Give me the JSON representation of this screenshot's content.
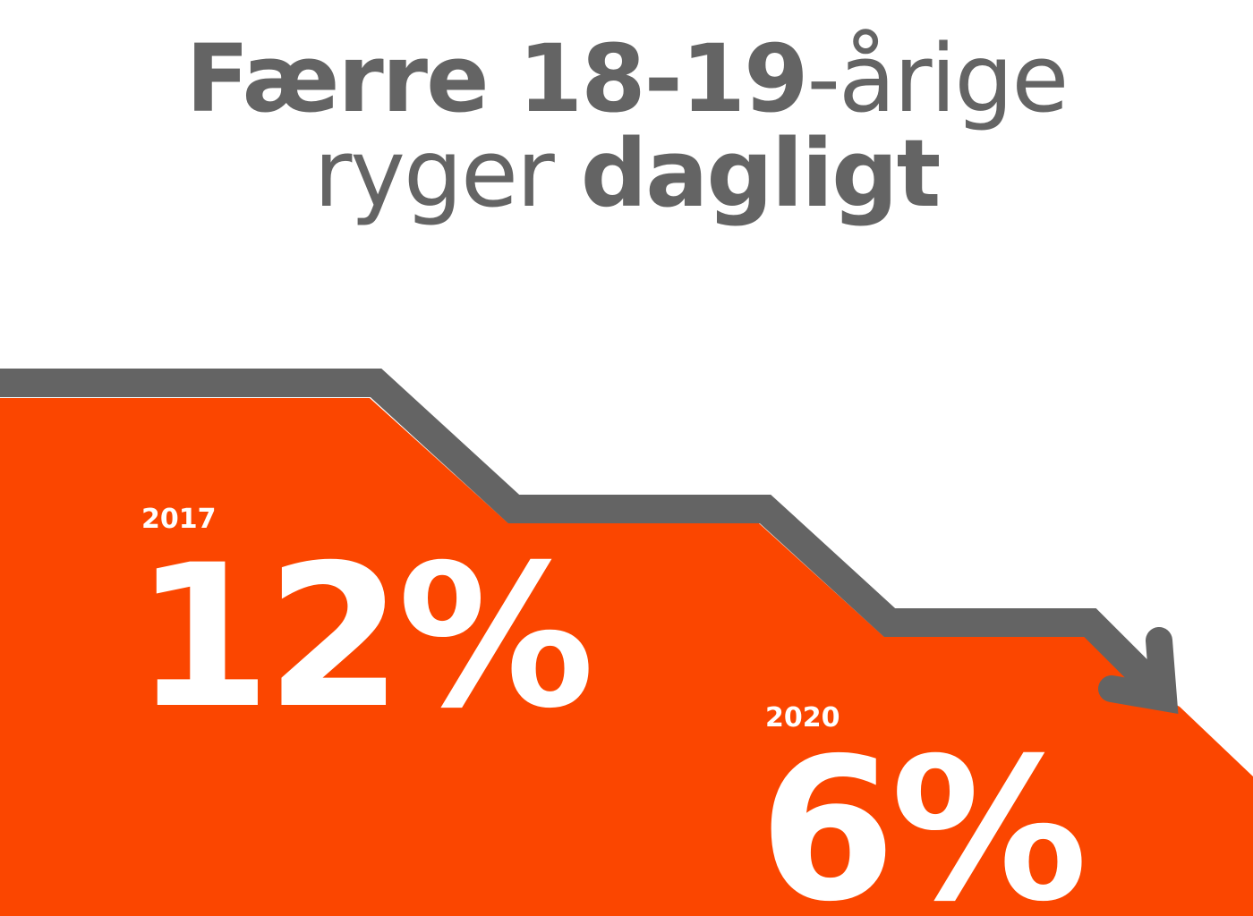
{
  "title": {
    "lines": [
      [
        {
          "text": "Færre 18-19",
          "bold": true
        },
        {
          "text": "-årige",
          "bold": false
        }
      ],
      [
        {
          "text": "ryger ",
          "bold": false
        },
        {
          "text": "dagligt",
          "bold": true
        }
      ]
    ]
  },
  "stats": [
    {
      "year": "2017",
      "value": "12%"
    },
    {
      "year": "2020",
      "value": "6%"
    }
  ]
}
